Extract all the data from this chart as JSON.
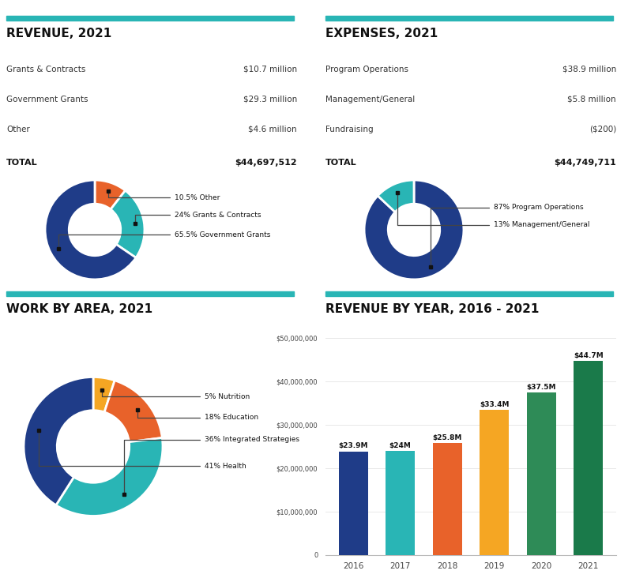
{
  "bg_color": "#ffffff",
  "teal_bar_color": "#29B5B5",
  "revenue_title": "REVENUE, 2021",
  "revenue_items": [
    {
      "label": "Grants & Contracts",
      "value": "$10.7 million"
    },
    {
      "label": "Government Grants",
      "value": "$29.3 million"
    },
    {
      "label": "Other",
      "value": "$4.6 million"
    }
  ],
  "revenue_total_label": "TOTAL",
  "revenue_total_value": "$44,697,512",
  "revenue_slices": [
    10.5,
    24.0,
    65.5
  ],
  "revenue_colors": [
    "#E8622A",
    "#29B5B5",
    "#1F3C88"
  ],
  "revenue_labels": [
    "10.5% Other",
    "24% Grants & Contracts",
    "65.5% Government Grants"
  ],
  "expenses_title": "EXPENSES, 2021",
  "expenses_items": [
    {
      "label": "Program Operations",
      "value": "$38.9 million"
    },
    {
      "label": "Management/General",
      "value": "$5.8 million"
    },
    {
      "label": "Fundraising",
      "value": "($200)"
    }
  ],
  "expenses_total_label": "TOTAL",
  "expenses_total_value": "$44,749,711",
  "expenses_slices": [
    87.0,
    13.0
  ],
  "expenses_colors": [
    "#1F3C88",
    "#29B5B5"
  ],
  "expenses_labels": [
    "87% Program Operations",
    "13% Management/General"
  ],
  "work_title": "WORK BY AREA, 2021",
  "work_slices": [
    5.0,
    18.0,
    36.0,
    41.0
  ],
  "work_colors": [
    "#F5A623",
    "#E8622A",
    "#29B5B5",
    "#1F3C88"
  ],
  "work_labels": [
    "5% Nutrition",
    "18% Education",
    "36% Integrated Strategies",
    "41% Health"
  ],
  "bar_title": "REVENUE BY YEAR, 2016 - 2021",
  "bar_years": [
    "2016",
    "2017",
    "2018",
    "2019",
    "2020",
    "2021"
  ],
  "bar_values": [
    23900000,
    24000000,
    25800000,
    33400000,
    37500000,
    44700000
  ],
  "bar_labels": [
    "$23.9M",
    "$24M",
    "$25.8M",
    "$33.4M",
    "$37.5M",
    "$44.7M"
  ],
  "bar_colors": [
    "#1F3C88",
    "#29B5B5",
    "#E8622A",
    "#F5A623",
    "#2E8B57",
    "#1A7A4A"
  ],
  "bar_ylim": [
    0,
    50000000
  ],
  "bar_yticks": [
    0,
    10000000,
    20000000,
    30000000,
    40000000,
    50000000
  ],
  "bar_ytick_labels": [
    "0",
    "$10,000,000",
    "$20,000,000",
    "$30,000,000",
    "$40,000,000",
    "$50,000,000"
  ]
}
